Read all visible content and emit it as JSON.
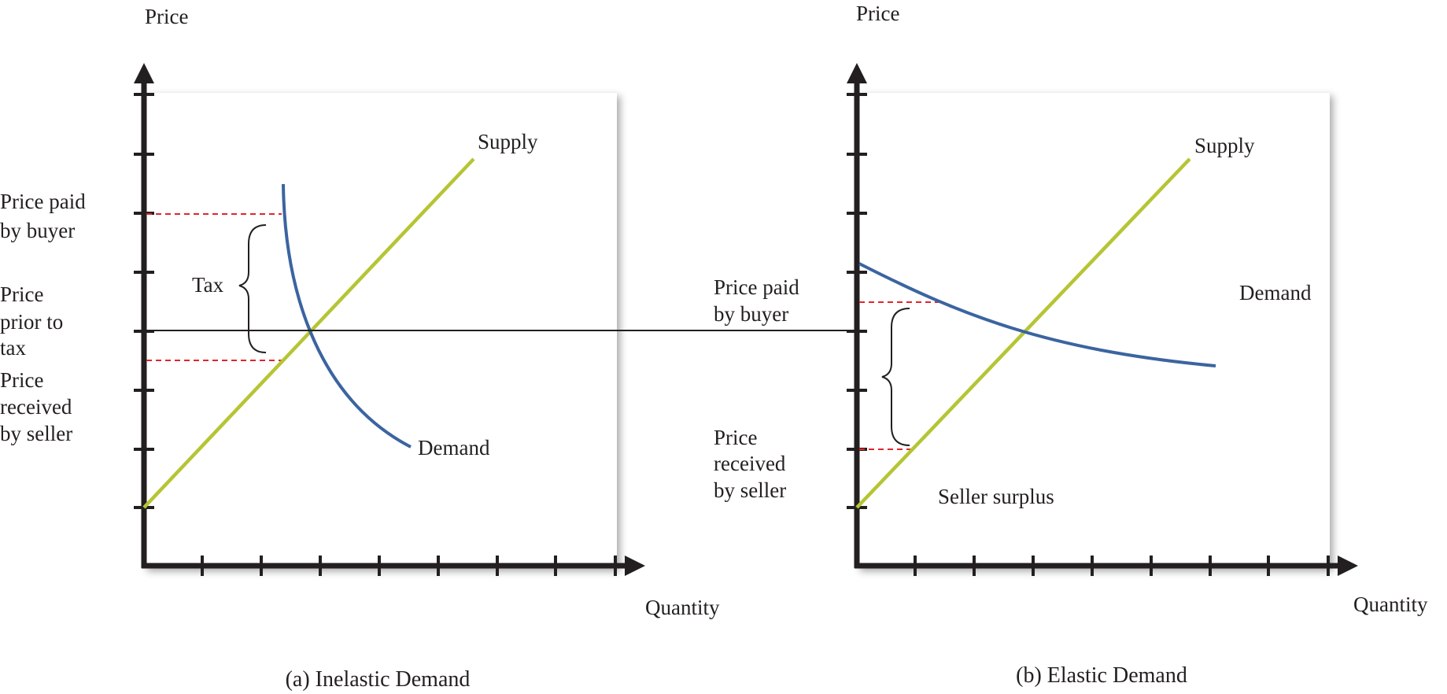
{
  "panels": [
    {
      "id": "inelastic",
      "caption": "(a) Inelastic Demand",
      "y_axis_label": "Price",
      "x_axis_label": "Quantity",
      "supply_label": "Supply",
      "demand_label": "Demand",
      "tax_label": "Tax",
      "price_paid_label": [
        "Price paid",
        "by buyer"
      ],
      "price_prior_label": [
        "Price",
        "prior to",
        "tax"
      ],
      "price_received_label": [
        "Price",
        "received",
        "by seller"
      ]
    },
    {
      "id": "elastic",
      "caption": "(b) Elastic Demand",
      "y_axis_label": "Price",
      "x_axis_label": "Quantity",
      "supply_label": "Supply",
      "demand_label": "Demand",
      "price_paid_label": [
        "Price paid",
        "by buyer"
      ],
      "price_received_label": [
        "Price",
        "received",
        "by seller"
      ],
      "surplus_label": "Seller surplus"
    }
  ],
  "colors": {
    "supply": "#b5c534",
    "demand": "#3b64a0",
    "dashed": "#e0262b",
    "axis": "#231f20"
  }
}
